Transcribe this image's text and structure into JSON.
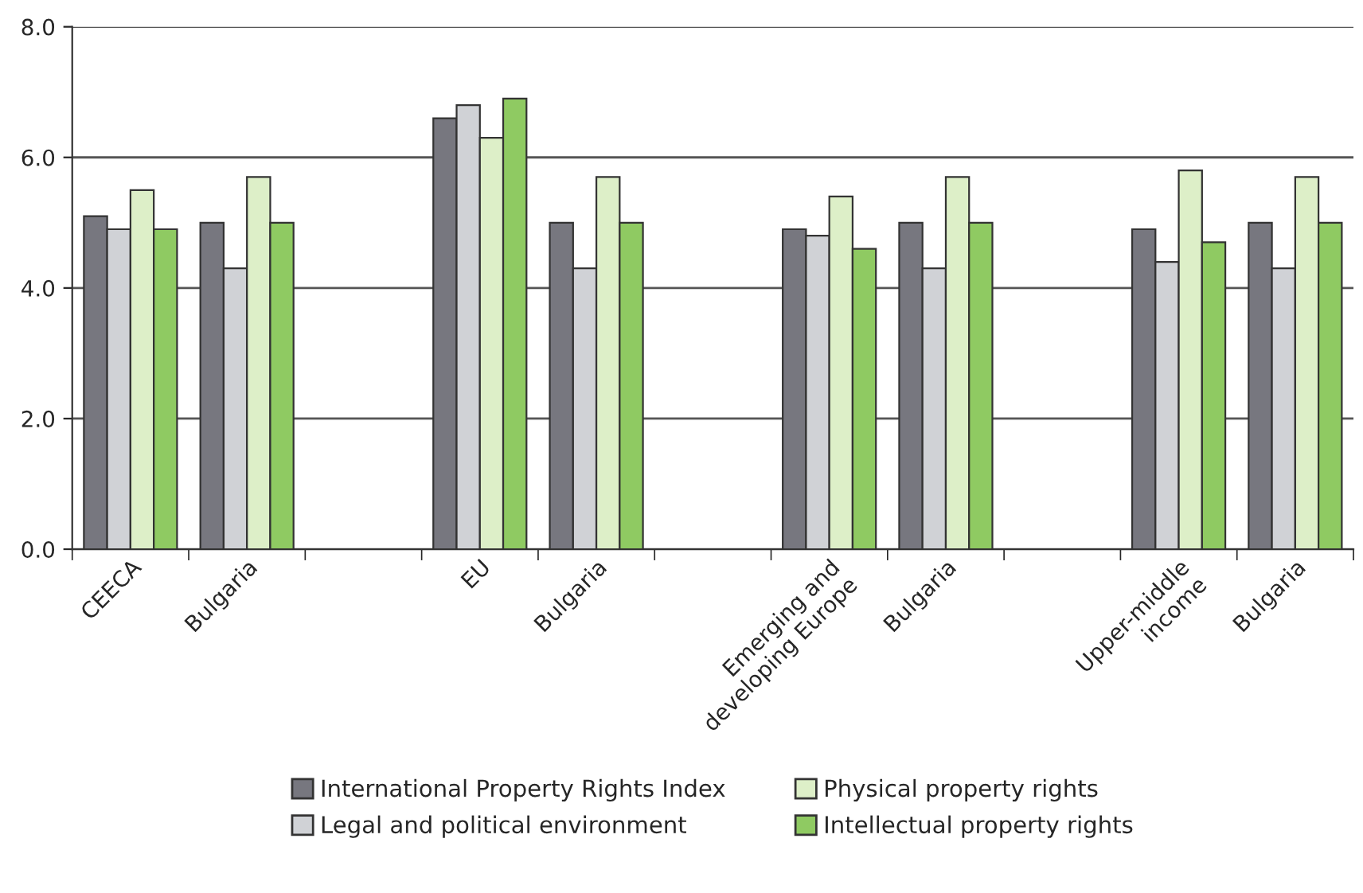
{
  "chart_data": {
    "type": "bar",
    "categories": [
      "CEECA",
      "Bulgaria",
      null,
      "EU",
      "Bulgaria",
      null,
      "Emerging and\ndeveloping Europe",
      "Bulgaria",
      null,
      "Upper-middle\nincome",
      "Bulgaria"
    ],
    "series": [
      {
        "name": "International Property Rights Index",
        "color": "#77777f",
        "values": [
          5.1,
          5.0,
          null,
          6.6,
          5.0,
          null,
          4.9,
          5.0,
          null,
          4.9,
          5.0
        ]
      },
      {
        "name": "Legal and political environment",
        "color": "#d0d2d6",
        "values": [
          4.9,
          4.3,
          null,
          6.8,
          4.3,
          null,
          4.8,
          4.3,
          null,
          4.4,
          4.3
        ]
      },
      {
        "name": "Physical property rights",
        "color": "#ddefc8",
        "values": [
          5.5,
          5.7,
          null,
          6.3,
          5.7,
          null,
          5.4,
          5.7,
          null,
          5.8,
          5.7
        ]
      },
      {
        "name": "Intellectual property rights",
        "color": "#8fca62",
        "values": [
          4.9,
          5.0,
          null,
          6.9,
          5.0,
          null,
          4.6,
          5.0,
          null,
          4.7,
          5.0
        ]
      }
    ],
    "ylim": [
      0,
      8
    ],
    "yticks": [
      {
        "value": 0,
        "label": "0.0"
      },
      {
        "value": 2,
        "label": "2.0"
      },
      {
        "value": 4,
        "label": "4.0"
      },
      {
        "value": 6,
        "label": "6.0"
      },
      {
        "value": 8,
        "label": "8.0"
      }
    ],
    "grid": "y",
    "legend": "bottom"
  }
}
